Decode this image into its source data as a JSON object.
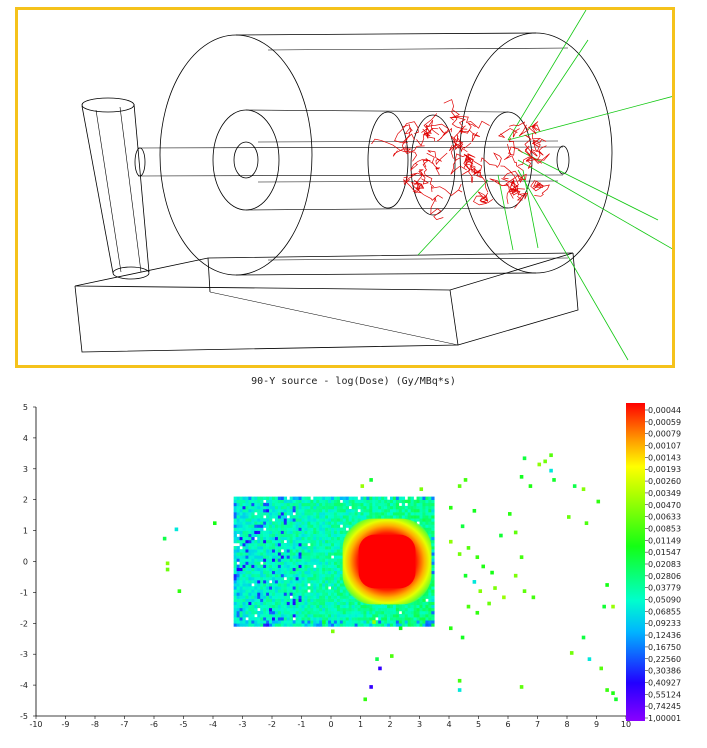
{
  "colors": {
    "frame_border": "#f5c21b",
    "geometry": "#000000",
    "track_red": "#e00000",
    "track_green": "#11c811"
  },
  "chart_data": {
    "type": "heatmap",
    "title": "90-Y source  -  log(Dose) (Gy/MBq*s)",
    "xlabel": "",
    "ylabel": "",
    "xlim": [
      -10,
      10
    ],
    "ylim": [
      -5,
      5
    ],
    "xticks": [
      "-10",
      "-9",
      "-8",
      "-7",
      "-6",
      "-5",
      "-4",
      "-3",
      "-2",
      "-1",
      "0",
      "1",
      "2",
      "3",
      "4",
      "5",
      "6",
      "7",
      "8",
      "9",
      "10"
    ],
    "yticks": [
      "5",
      "4",
      "3",
      "2",
      "1",
      "0",
      "-1",
      "-2",
      "-3",
      "-4",
      "-5"
    ],
    "colorbar": {
      "colormap": "rainbow",
      "position": "right",
      "labels": [
        "0,00044",
        "0,00059",
        "0,00079",
        "0,00107",
        "0,00143",
        "0,00193",
        "0,00260",
        "0,00349",
        "0,00470",
        "0,00633",
        "0,00853",
        "0,01149",
        "0,01547",
        "0,02083",
        "0,02806",
        "0,03779",
        "0,05090",
        "0,06855",
        "0,09233",
        "0,12436",
        "0,16750",
        "0,22560",
        "0,30386",
        "0,40927",
        "0,55124",
        "0,74245",
        "1,00001"
      ]
    },
    "regions": [
      {
        "kind": "dose-box",
        "x": [
          -3.3,
          3.5
        ],
        "y": [
          -2.1,
          2.1
        ],
        "level": "cyan-green, noisy"
      },
      {
        "kind": "dose-core",
        "x": [
          0.8,
          3.0
        ],
        "y": [
          -1.0,
          1.0
        ],
        "level": "red (max)"
      }
    ],
    "scatter_cells": [
      [
        -5.7,
        0.7
      ],
      [
        -5.6,
        -0.1
      ],
      [
        -5.6,
        -0.3
      ],
      [
        -5.3,
        1.0
      ],
      [
        -5.2,
        -1.0
      ],
      [
        -4.0,
        1.2
      ],
      [
        1.3,
        2.6
      ],
      [
        1.0,
        2.4
      ],
      [
        3.0,
        2.3
      ],
      [
        4.3,
        2.4
      ],
      [
        4.5,
        2.6
      ],
      [
        4.0,
        1.7
      ],
      [
        4.8,
        1.6
      ],
      [
        4.4,
        1.1
      ],
      [
        4.0,
        0.6
      ],
      [
        4.3,
        0.2
      ],
      [
        4.6,
        0.4
      ],
      [
        4.9,
        0.1
      ],
      [
        5.1,
        -0.2
      ],
      [
        4.5,
        -0.5
      ],
      [
        4.8,
        -0.7
      ],
      [
        5.0,
        -1.0
      ],
      [
        5.3,
        -1.4
      ],
      [
        4.6,
        -1.5
      ],
      [
        4.9,
        -1.7
      ],
      [
        5.4,
        -0.4
      ],
      [
        5.7,
        0.8
      ],
      [
        5.8,
        -1.2
      ],
      [
        5.5,
        -0.9
      ],
      [
        6.2,
        0.9
      ],
      [
        6.4,
        0.1
      ],
      [
        6.0,
        1.5
      ],
      [
        6.4,
        2.7
      ],
      [
        6.5,
        3.3
      ],
      [
        7.0,
        3.1
      ],
      [
        7.2,
        3.2
      ],
      [
        7.4,
        3.4
      ],
      [
        7.4,
        2.9
      ],
      [
        6.7,
        2.4
      ],
      [
        7.5,
        2.6
      ],
      [
        8.2,
        2.4
      ],
      [
        8.5,
        2.3
      ],
      [
        8.0,
        1.4
      ],
      [
        8.6,
        1.2
      ],
      [
        9.0,
        1.9
      ],
      [
        9.3,
        -0.8
      ],
      [
        9.2,
        -1.5
      ],
      [
        9.5,
        -1.5
      ],
      [
        6.2,
        -0.5
      ],
      [
        6.5,
        -1.0
      ],
      [
        6.8,
        -1.2
      ],
      [
        4.0,
        -2.2
      ],
      [
        4.4,
        -2.5
      ],
      [
        8.5,
        -2.5
      ],
      [
        8.7,
        -3.2
      ],
      [
        8.1,
        -3.0
      ],
      [
        9.1,
        -3.5
      ],
      [
        9.3,
        -4.2
      ],
      [
        9.5,
        -4.3
      ],
      [
        9.6,
        -4.5
      ],
      [
        1.5,
        -3.2
      ],
      [
        1.6,
        -3.5
      ],
      [
        1.3,
        -4.1
      ],
      [
        2.0,
        -3.1
      ],
      [
        1.1,
        -4.5
      ],
      [
        2.3,
        -2.2
      ],
      [
        -0.3,
        -2.0
      ],
      [
        1.4,
        -2.0
      ],
      [
        0.0,
        -2.3
      ],
      [
        6.4,
        -4.1
      ],
      [
        4.3,
        -3.9
      ],
      [
        4.3,
        -4.2
      ]
    ]
  }
}
